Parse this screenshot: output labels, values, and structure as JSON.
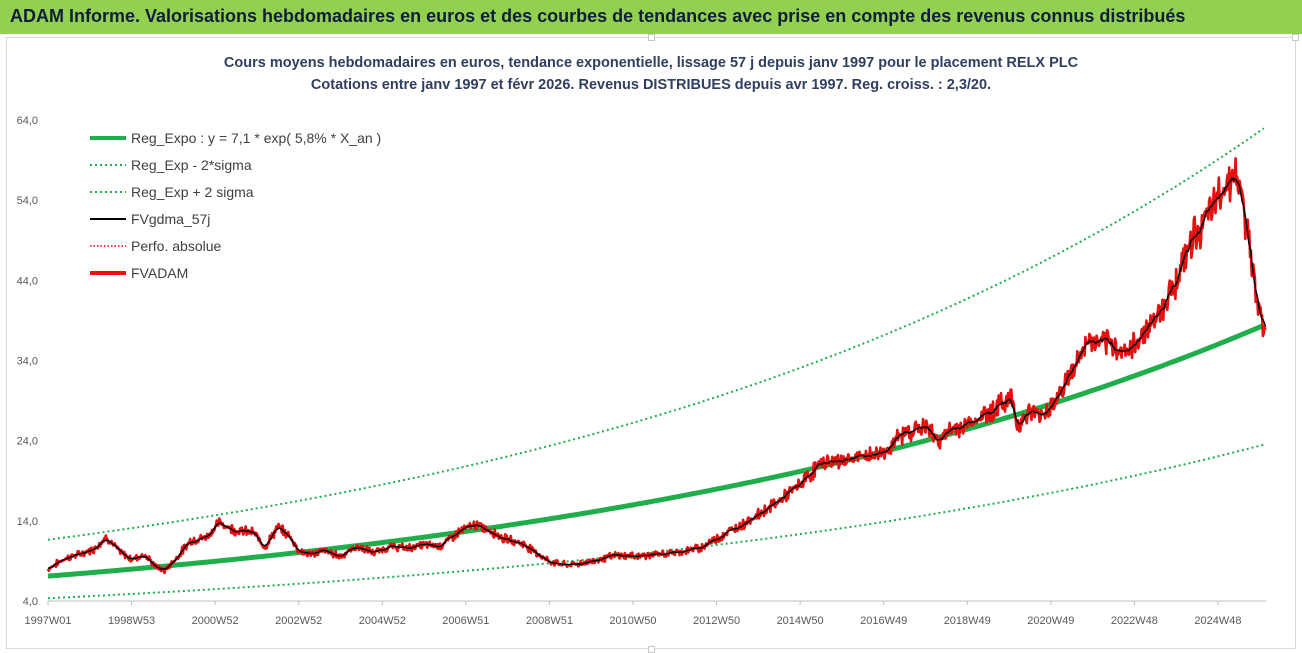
{
  "banner": "ADAM Informe. Valorisations hebdomadaires en euros et des courbes de tendances avec prise en compte des revenus connus distribués",
  "chart_data": {
    "type": "line",
    "title": "Cours moyens hebdomadaires en euros, tendance exponentielle, lissage 57 j depuis janv 1997 pour le placement RELX PLC",
    "subtitle": "Cotations entre janv 1997 et févr 2026. Revenus DISTRIBUES depuis avr 1997. Reg. croiss. : 2,3/20.",
    "ylim": [
      4,
      64
    ],
    "xlim": [
      1997.0,
      2026.15
    ],
    "y_ticks": [
      "4,0",
      "14,0",
      "24,0",
      "34,0",
      "44,0",
      "54,0",
      "64,0"
    ],
    "x_ticks": [
      {
        "label": "1997W01",
        "t": 1997.0
      },
      {
        "label": "1998W53",
        "t": 1999.0
      },
      {
        "label": "2000W52",
        "t": 2001.0
      },
      {
        "label": "2002W52",
        "t": 2003.0
      },
      {
        "label": "2004W52",
        "t": 2005.0
      },
      {
        "label": "2006W51",
        "t": 2007.0
      },
      {
        "label": "2008W51",
        "t": 2009.0
      },
      {
        "label": "2010W50",
        "t": 2011.0
      },
      {
        "label": "2012W50",
        "t": 2013.0
      },
      {
        "label": "2014W50",
        "t": 2015.0
      },
      {
        "label": "2016W49",
        "t": 2017.0
      },
      {
        "label": "2018W49",
        "t": 2019.0
      },
      {
        "label": "2020W49",
        "t": 2021.0
      },
      {
        "label": "2022W48",
        "t": 2023.0
      },
      {
        "label": "2024W48",
        "t": 2025.0
      }
    ],
    "legend": [
      {
        "label": "Reg_Expo : y = 7,1 * exp( 5,8% *  X_an )",
        "color": "#1fae4b",
        "style": "solid-thick"
      },
      {
        "label": "Reg_Exp - 2*sigma",
        "color": "#1fae4b",
        "style": "dotted"
      },
      {
        "label": "Reg_Exp + 2 sigma",
        "color": "#1fae4b",
        "style": "dotted"
      },
      {
        "label": "FVgdma_57j",
        "color": "#000000",
        "style": "solid"
      },
      {
        "label": "Perfo. absolue",
        "color": "#e00000",
        "style": "dotted-thin"
      },
      {
        "label": "FVADAM",
        "color": "#e51010",
        "style": "solid-thick"
      }
    ],
    "legend_position": "top-left",
    "grid": false,
    "trend": {
      "a": 7.1,
      "rate": 0.058,
      "lower_factor": 0.612,
      "upper_factor": 1.64
    },
    "price_anchors": [
      [
        1997.0,
        8.0
      ],
      [
        1997.4,
        9.3
      ],
      [
        1997.8,
        9.9
      ],
      [
        1998.1,
        10.5
      ],
      [
        1998.4,
        12.0
      ],
      [
        1998.7,
        10.2
      ],
      [
        1999.0,
        9.2
      ],
      [
        1999.3,
        9.8
      ],
      [
        1999.6,
        8.2
      ],
      [
        1999.8,
        7.8
      ],
      [
        2000.1,
        9.5
      ],
      [
        2000.4,
        11.5
      ],
      [
        2000.8,
        12.0
      ],
      [
        2001.1,
        13.8
      ],
      [
        2001.5,
        12.8
      ],
      [
        2001.9,
        12.6
      ],
      [
        2002.2,
        10.8
      ],
      [
        2002.5,
        13.2
      ],
      [
        2002.8,
        12.0
      ],
      [
        2003.0,
        10.3
      ],
      [
        2003.3,
        9.8
      ],
      [
        2003.6,
        10.3
      ],
      [
        2004.0,
        9.6
      ],
      [
        2004.4,
        10.8
      ],
      [
        2004.8,
        10.0
      ],
      [
        2005.2,
        10.8
      ],
      [
        2005.6,
        10.6
      ],
      [
        2006.0,
        11.0
      ],
      [
        2006.4,
        10.9
      ],
      [
        2006.8,
        12.5
      ],
      [
        2007.2,
        13.5
      ],
      [
        2007.6,
        12.8
      ],
      [
        2007.9,
        11.8
      ],
      [
        2008.3,
        11.3
      ],
      [
        2008.6,
        10.4
      ],
      [
        2009.0,
        8.9
      ],
      [
        2009.4,
        8.5
      ],
      [
        2009.8,
        8.7
      ],
      [
        2010.2,
        9.2
      ],
      [
        2010.6,
        9.7
      ],
      [
        2011.0,
        9.6
      ],
      [
        2011.4,
        9.7
      ],
      [
        2011.8,
        9.9
      ],
      [
        2012.2,
        10.2
      ],
      [
        2012.6,
        10.6
      ],
      [
        2013.0,
        11.8
      ],
      [
        2013.5,
        13.2
      ],
      [
        2014.0,
        14.8
      ],
      [
        2014.5,
        16.5
      ],
      [
        2015.0,
        18.5
      ],
      [
        2015.5,
        21.2
      ],
      [
        2016.0,
        21.5
      ],
      [
        2016.5,
        22.0
      ],
      [
        2017.0,
        22.5
      ],
      [
        2017.5,
        25.0
      ],
      [
        2018.0,
        25.8
      ],
      [
        2018.3,
        24.0
      ],
      [
        2018.7,
        25.5
      ],
      [
        2019.0,
        26.0
      ],
      [
        2019.4,
        27.2
      ],
      [
        2019.8,
        28.5
      ],
      [
        2020.05,
        29.5
      ],
      [
        2020.2,
        26.0
      ],
      [
        2020.5,
        27.5
      ],
      [
        2020.8,
        27.2
      ],
      [
        2021.1,
        29.0
      ],
      [
        2021.5,
        32.5
      ],
      [
        2021.9,
        36.5
      ],
      [
        2022.2,
        36.0
      ],
      [
        2022.5,
        35.8
      ],
      [
        2022.9,
        35.0
      ],
      [
        2023.2,
        37.5
      ],
      [
        2023.6,
        40.0
      ],
      [
        2024.0,
        44.0
      ],
      [
        2024.4,
        49.5
      ],
      [
        2024.8,
        52.0
      ],
      [
        2025.1,
        55.5
      ],
      [
        2025.4,
        57.5
      ],
      [
        2025.6,
        53.5
      ],
      [
        2025.85,
        44.5
      ],
      [
        2026.0,
        40.5
      ],
      [
        2026.1,
        37.5
      ],
      [
        2026.15,
        38.5
      ]
    ]
  }
}
